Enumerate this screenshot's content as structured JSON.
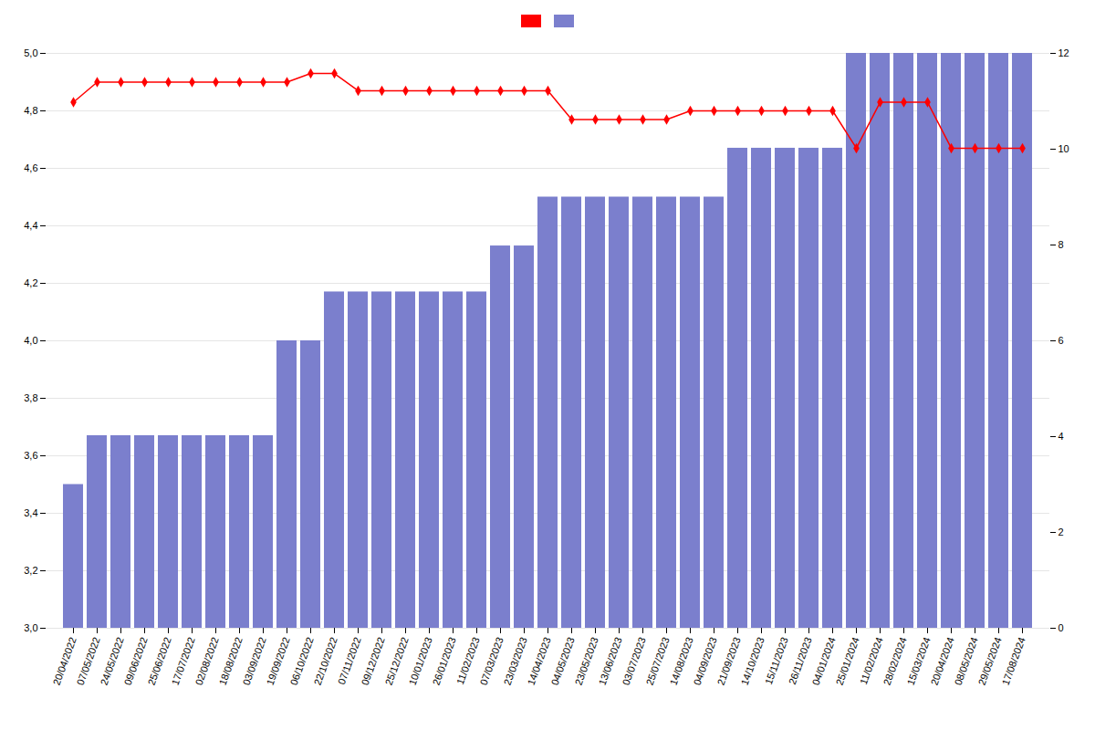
{
  "chart_data": {
    "type": "bar",
    "categories": [
      "20/04/2022",
      "07/05/2022",
      "24/05/2022",
      "09/06/2022",
      "25/06/2022",
      "17/07/2022",
      "02/08/2022",
      "18/08/2022",
      "03/09/2022",
      "19/09/2022",
      "06/10/2022",
      "22/10/2022",
      "07/11/2022",
      "09/12/2022",
      "25/12/2022",
      "10/01/2023",
      "26/01/2023",
      "11/02/2023",
      "07/03/2023",
      "23/03/2023",
      "14/04/2023",
      "04/05/2023",
      "23/05/2023",
      "13/06/2023",
      "03/07/2023",
      "25/07/2023",
      "14/08/2023",
      "04/09/2023",
      "21/09/2023",
      "14/10/2023",
      "15/11/2023",
      "26/11/2023",
      "04/01/2024",
      "25/01/2024",
      "11/02/2024",
      "28/02/2024",
      "15/03/2024",
      "20/04/2024",
      "08/05/2024",
      "29/05/2024",
      "17/08/2024"
    ],
    "series": [
      {
        "type": "bar",
        "color": "#7b7fcd",
        "values": [
          3.5,
          3.67,
          3.67,
          3.67,
          3.67,
          3.67,
          3.67,
          3.67,
          3.67,
          4.0,
          4.0,
          4.17,
          4.17,
          4.17,
          4.17,
          4.17,
          4.17,
          4.17,
          4.33,
          4.33,
          4.5,
          4.5,
          4.5,
          4.5,
          4.5,
          4.5,
          4.5,
          4.5,
          4.67,
          4.67,
          4.67,
          4.67,
          4.67,
          5.0,
          5.0,
          5.0,
          5.0,
          5.0,
          5.0,
          5.0,
          5.0
        ]
      },
      {
        "type": "line",
        "color": "#ff0000",
        "marker": "diamond",
        "values": [
          4.83,
          4.9,
          4.9,
          4.9,
          4.9,
          4.9,
          4.9,
          4.9,
          4.9,
          4.9,
          4.93,
          4.93,
          4.87,
          4.87,
          4.87,
          4.87,
          4.87,
          4.87,
          4.87,
          4.87,
          4.87,
          4.77,
          4.77,
          4.77,
          4.77,
          4.77,
          4.8,
          4.8,
          4.8,
          4.8,
          4.8,
          4.8,
          4.8,
          4.67,
          4.83,
          4.83,
          4.83,
          4.67,
          4.67,
          4.67,
          4.67
        ]
      }
    ],
    "ylim": [
      3.0,
      5.0
    ],
    "yticks": [
      {
        "value": 3.0,
        "label": "3,0"
      },
      {
        "value": 3.2,
        "label": "3,2"
      },
      {
        "value": 3.4,
        "label": "3,4"
      },
      {
        "value": 3.6,
        "label": "3,6"
      },
      {
        "value": 3.8,
        "label": "3,8"
      },
      {
        "value": 4.0,
        "label": "4,0"
      },
      {
        "value": 4.2,
        "label": "4,2"
      },
      {
        "value": 4.4,
        "label": "4,4"
      },
      {
        "value": 4.6,
        "label": "4,6"
      },
      {
        "value": 4.8,
        "label": "4,8"
      },
      {
        "value": 5.0,
        "label": "5,0"
      }
    ],
    "y2lim": [
      0,
      12
    ],
    "y2ticks": [
      0,
      2,
      4,
      6,
      8,
      10,
      12
    ],
    "grid": true,
    "legend": "top"
  }
}
